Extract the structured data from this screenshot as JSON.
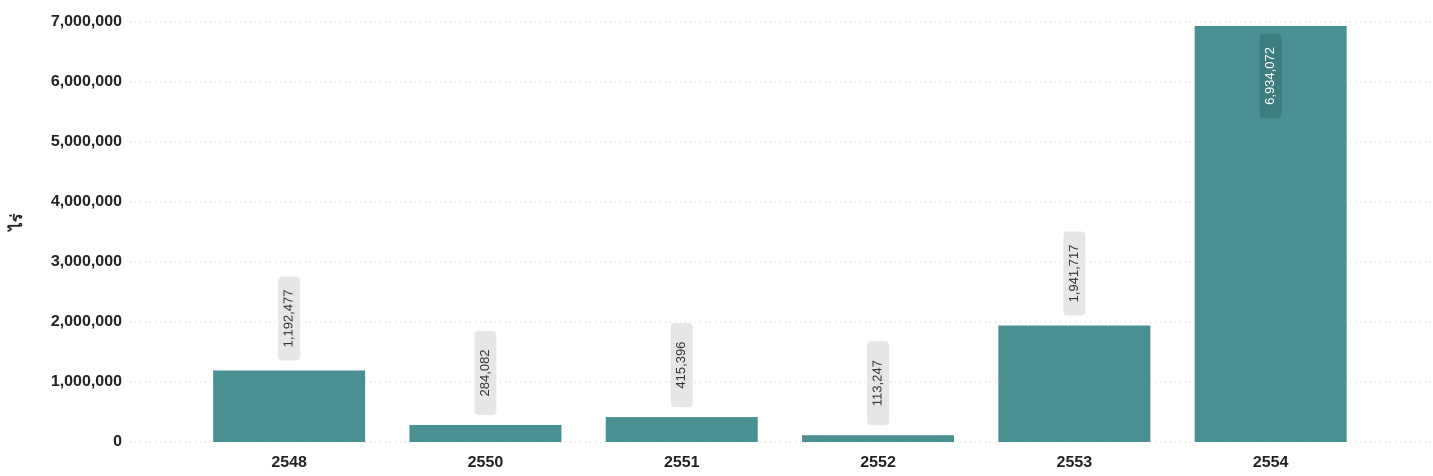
{
  "chart_data": {
    "type": "bar",
    "y_label": "ไร่",
    "categories": [
      "2548",
      "2550",
      "2551",
      "2552",
      "2553",
      "2554"
    ],
    "values": [
      1192477,
      284082,
      415396,
      113247,
      1941717,
      6934072
    ],
    "value_labels": [
      "1,192,477",
      "284,082",
      "415,396",
      "113,247",
      "1,941,717",
      "6,934,072"
    ],
    "color": "#4a9093",
    "ylim": [
      0,
      7000000
    ],
    "yticks": [
      0,
      {
        "value": 1000000,
        "label": "1,000,000"
      },
      {
        "value": 2000000,
        "label": "2,000,000"
      },
      {
        "value": 3000000,
        "label": "3,000,000"
      },
      {
        "value": 4000000,
        "label": "4,000,000"
      },
      {
        "value": 5000000,
        "label": "5,000,000"
      },
      {
        "value": 6000000,
        "label": "6,000,000"
      },
      {
        "value": 7000000,
        "label": "7,000,000"
      }
    ],
    "grid": true
  }
}
